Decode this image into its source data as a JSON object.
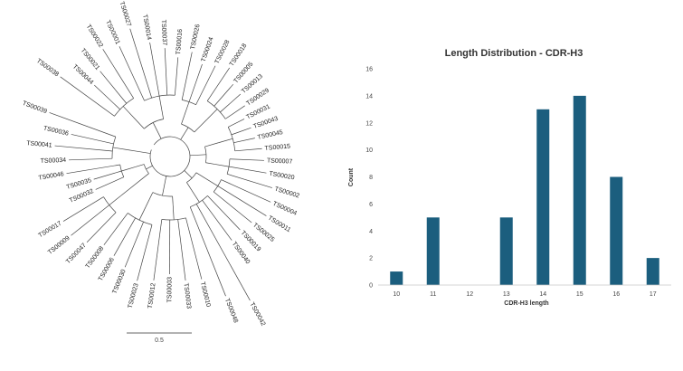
{
  "tree": {
    "labels": [
      "TS00038",
      "TS00044",
      "TS00021",
      "TS00022",
      "TS00001",
      "TS00027",
      "TS00014",
      "TS00037",
      "TS00016",
      "TS00026",
      "TS00024",
      "TS00028",
      "TS00018",
      "TS00005",
      "TS00013",
      "TS00029",
      "TS00031",
      "TS00043",
      "TS00045",
      "TS00015",
      "TS00007",
      "TS00020",
      "TS00002",
      "TS00004",
      "TS00011",
      "TS00025",
      "TS00019",
      "TS00040",
      "TS00042",
      "TS00048",
      "TS00010",
      "TS00033",
      "TS00003",
      "TS00012",
      "TS00023",
      "TS00030",
      "TS00006",
      "TS00008",
      "TS00047",
      "TS00009",
      "TS00017",
      "TS00032",
      "TS00035",
      "TS00046",
      "TS00034",
      "TS00041",
      "TS00036",
      "TS00039"
    ],
    "scale_label": "0.5"
  },
  "chart_data": {
    "type": "bar",
    "title": "Length Distribution - CDR-H3",
    "xlabel": "CDR-H3 length",
    "ylabel": "Count",
    "categories": [
      "10",
      "11",
      "12",
      "13",
      "14",
      "15",
      "16",
      "17"
    ],
    "values": [
      1,
      5,
      0,
      5,
      13,
      14,
      8,
      2
    ],
    "ylim": [
      0,
      16
    ],
    "yticks": [
      "0",
      "2",
      "4",
      "6",
      "8",
      "10",
      "12",
      "14",
      "16"
    ],
    "grid": false,
    "bar_color": "#1b5e7e"
  }
}
